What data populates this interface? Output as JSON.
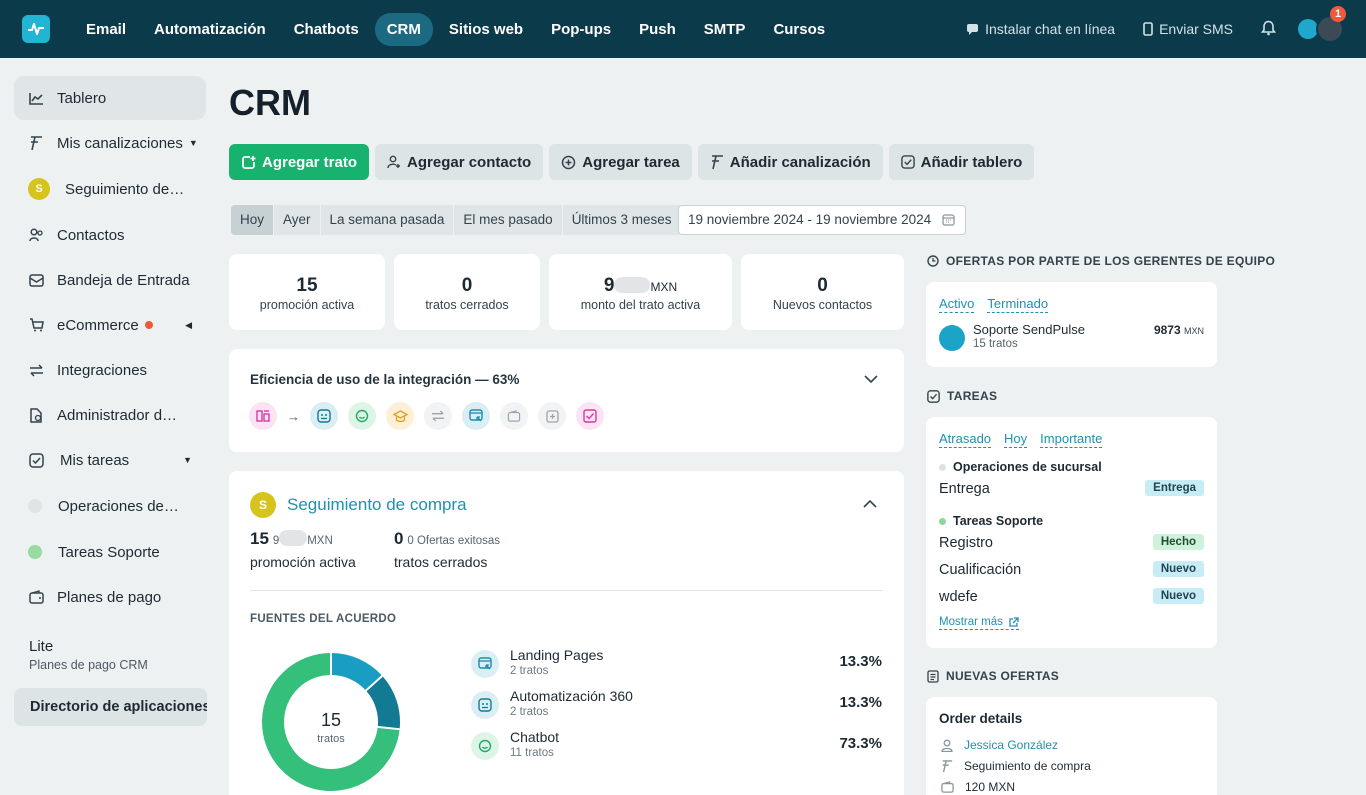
{
  "nav": {
    "items": [
      {
        "label": "Email",
        "active": false
      },
      {
        "label": "Automatización",
        "active": false
      },
      {
        "label": "Chatbots",
        "active": false
      },
      {
        "label": "CRM",
        "active": true
      },
      {
        "label": "Sitios web",
        "active": false
      },
      {
        "label": "Pop-ups",
        "active": false
      },
      {
        "label": "Push",
        "active": false
      },
      {
        "label": "SMTP",
        "active": false
      },
      {
        "label": "Cursos",
        "active": false
      }
    ],
    "install_chat": "Instalar chat en línea",
    "send_sms": "Enviar SMS",
    "notification_count": "1"
  },
  "sidebar": {
    "items": [
      {
        "label": "Tablero",
        "icon": "chart-line-icon"
      },
      {
        "label": "Mis canalizaciones",
        "icon": "funnel-icon"
      },
      {
        "label": "Seguimiento de compra",
        "icon": "pipeline-avatar",
        "avatar": "S"
      },
      {
        "label": "Contactos",
        "icon": "contacts-icon"
      },
      {
        "label": "Bandeja de Entrada",
        "icon": "inbox-icon"
      },
      {
        "label": "eCommerce",
        "icon": "cart-icon"
      },
      {
        "label": "Integraciones",
        "icon": "swap-icon"
      },
      {
        "label": "Administrador de archivos",
        "icon": "file-manager-icon"
      },
      {
        "label": "Mis tareas",
        "icon": "tasks-icon"
      },
      {
        "label": "Operaciones de sucursal",
        "icon": "status-dot"
      },
      {
        "label": "Tareas Soporte",
        "icon": "status-dot"
      },
      {
        "label": "Planes de pago",
        "icon": "wallet-icon"
      }
    ],
    "plan_name": "Lite",
    "plan_sub": "Planes de pago CRM",
    "directory": "Directorio de aplicaciones"
  },
  "page": {
    "title": "CRM",
    "actions": [
      "Agregar trato",
      "Agregar contacto",
      "Agregar tarea",
      "Añadir canalización",
      "Añadir tablero"
    ],
    "filters": [
      "Hoy",
      "Ayer",
      "La semana pasada",
      "El mes pasado",
      "Últimos 3 meses"
    ],
    "selected_filter": "Hoy",
    "date_range": "19 noviembre 2024 - 19 noviembre 2024"
  },
  "stats": [
    {
      "value": "15",
      "label": "promoción activa"
    },
    {
      "value": "0",
      "label": "tratos cerrados"
    },
    {
      "value": "9",
      "unit": "MXN",
      "label": "monto del trato activa"
    },
    {
      "value": "0",
      "label": "Nuevos contactos"
    }
  ],
  "efficiency": {
    "title": "Eficiencia de uso de la integración — 63%",
    "percent": 63
  },
  "pipeline": {
    "avatar": "S",
    "name": "Seguimiento de compra",
    "active_count": "15",
    "active_amount_prefix": "9",
    "currency": "MXN",
    "active_label": "promoción activa",
    "closed_count": "0",
    "closed_note": "0 Ofertas exitosas",
    "closed_label": "tratos cerrados",
    "sources_title": "FUENTES DEL ACUERDO",
    "donut_total": "15",
    "donut_label": "tratos",
    "sources": [
      {
        "name": "Landing Pages",
        "count": "2 tratos",
        "percent": "13.3%",
        "icon": "landing-page-icon",
        "color": "#1a9dc2"
      },
      {
        "name": "Automatización 360",
        "count": "2 tratos",
        "percent": "13.3%",
        "icon": "automation-icon",
        "color": "#137a94"
      },
      {
        "name": "Chatbot",
        "count": "11 tratos",
        "percent": "73.3%",
        "icon": "chatbot-icon",
        "color": "#34c07a"
      }
    ]
  },
  "chart_data": {
    "type": "pie",
    "categories": [
      "Landing Pages",
      "Automatización 360",
      "Chatbot"
    ],
    "values": [
      2,
      2,
      11
    ],
    "percent": [
      13.3,
      13.3,
      73.3
    ],
    "colors": [
      "#1a9dc2",
      "#137a94",
      "#34c07a"
    ],
    "center_value": "15",
    "center_label": "tratos"
  },
  "managers": {
    "title": "OFERTAS POR PARTE DE LOS GERENTES DE EQUIPO",
    "tabs": [
      "Activo",
      "Terminado"
    ],
    "name": "Soporte SendPulse",
    "deals": "15 tratos",
    "amount": "9873",
    "currency": "MXN"
  },
  "tasks": {
    "title": "TAREAS",
    "tabs": [
      "Atrasado",
      "Hoy",
      "Importante"
    ],
    "group1": "Operaciones de sucursal",
    "group2": "Tareas Soporte",
    "items": [
      {
        "name": "Entrega",
        "status": "Entrega"
      },
      {
        "name": "Registro",
        "status": "Hecho"
      },
      {
        "name": "Cualificación",
        "status": "Nuevo"
      },
      {
        "name": "wdefe",
        "status": "Nuevo"
      }
    ],
    "show_more": "Mostrar más"
  },
  "new_offers": {
    "title": "NUEVAS OFERTAS",
    "card_title": "Order details",
    "contact": "Jessica González",
    "pipeline": "Seguimiento de compra",
    "amount": "120 MXN"
  }
}
